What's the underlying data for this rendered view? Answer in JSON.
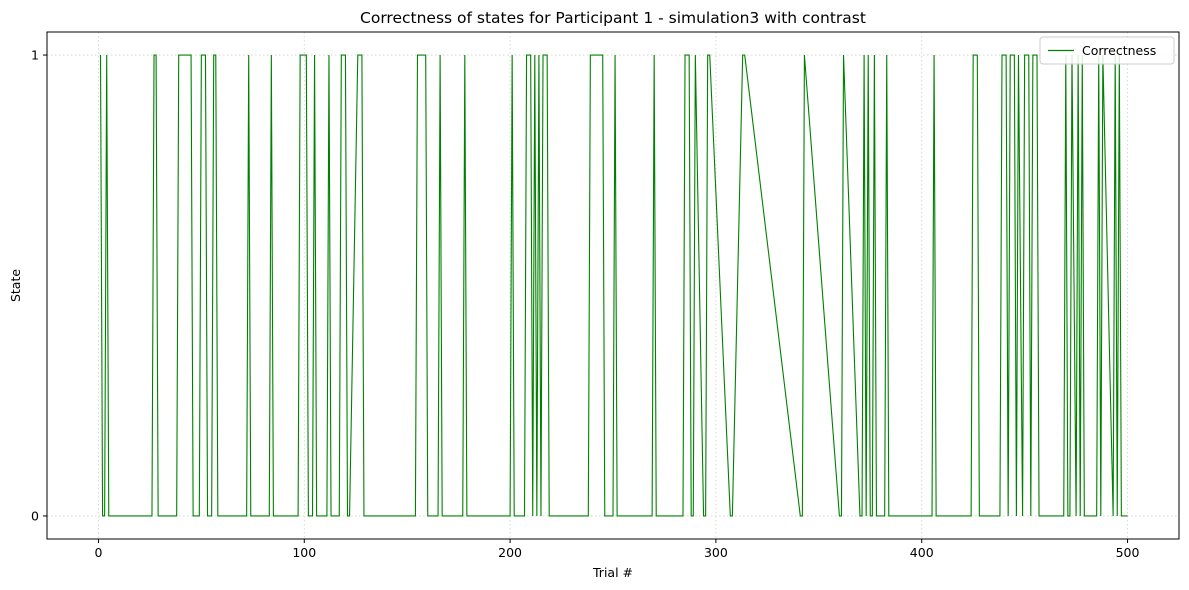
{
  "chart_data": {
    "type": "line",
    "title": "Correctness of states for Participant 1 - simulation3 with contrast",
    "xlabel": "Trial #",
    "ylabel": "State",
    "xlim": [
      -25,
      525
    ],
    "ylim": [
      -0.05,
      1.05
    ],
    "xticks": [
      0,
      100,
      200,
      300,
      400,
      500
    ],
    "xtick_labels": [
      "0",
      "100",
      "200",
      "300",
      "400",
      "500"
    ],
    "yticks": [
      0,
      1
    ],
    "ytick_labels": [
      "0",
      "1"
    ],
    "grid": true,
    "legend_position": "upper right",
    "series": [
      {
        "name": "Correctness",
        "color": "#008000",
        "x": [
          1,
          2,
          3,
          4,
          5,
          26,
          27,
          28,
          29,
          38,
          39,
          45,
          46,
          49,
          50,
          52,
          53,
          55,
          56,
          57,
          58,
          72,
          73,
          74,
          83,
          84,
          85,
          97,
          98,
          101,
          102,
          104,
          105,
          106,
          111,
          112,
          113,
          117,
          118,
          120,
          121,
          122,
          126,
          127,
          128,
          129,
          154,
          155,
          159,
          160,
          165,
          166,
          167,
          177,
          178,
          179,
          200,
          201,
          202,
          207,
          208,
          210,
          211,
          212,
          213,
          214,
          215,
          216,
          217,
          218,
          219,
          238,
          239,
          245,
          246,
          250,
          251,
          252,
          269,
          270,
          271,
          284,
          285,
          287,
          288,
          289,
          290,
          294,
          295,
          296,
          297,
          307,
          308,
          313,
          314,
          341,
          342,
          343,
          360,
          361,
          362,
          370,
          371,
          372,
          373,
          374,
          375,
          376,
          377,
          378,
          382,
          383,
          384,
          405,
          406,
          407,
          424,
          425,
          427,
          428,
          438,
          439,
          441,
          442,
          443,
          445,
          446,
          447,
          449,
          450,
          452,
          453,
          454,
          456,
          457,
          469,
          470,
          471,
          472,
          473,
          475,
          476,
          477,
          478,
          479,
          485,
          486,
          487,
          488,
          493,
          494,
          495,
          496,
          497,
          500
        ],
        "y": [
          1,
          0,
          0,
          1,
          0,
          0,
          1,
          1,
          0,
          0,
          1,
          1,
          0,
          0,
          1,
          1,
          0,
          0,
          1,
          1,
          0,
          0,
          1,
          0,
          0,
          1,
          0,
          0,
          1,
          1,
          0,
          0,
          1,
          0,
          0,
          1,
          0,
          0,
          1,
          1,
          0,
          0,
          1,
          1,
          1,
          0,
          0,
          1,
          1,
          0,
          0,
          1,
          0,
          0,
          1,
          0,
          0,
          1,
          0,
          0,
          1,
          1,
          0,
          1,
          0,
          1,
          0,
          1,
          1,
          1,
          0,
          0,
          1,
          1,
          0,
          0,
          1,
          0,
          0,
          1,
          0,
          0,
          1,
          1,
          0,
          0,
          1,
          0,
          0,
          1,
          1,
          0,
          0,
          1,
          1,
          0,
          0,
          1,
          0,
          0,
          1,
          0,
          0,
          1,
          0,
          1,
          0,
          0,
          1,
          0,
          0,
          1,
          0,
          0,
          1,
          0,
          0,
          1,
          1,
          0,
          0,
          1,
          1,
          0,
          1,
          1,
          0,
          1,
          0,
          1,
          1,
          0,
          1,
          1,
          0,
          0,
          1,
          0,
          0,
          1,
          0,
          1,
          0,
          1,
          0,
          0,
          1,
          0,
          1,
          0,
          1,
          0,
          1,
          0,
          0
        ]
      }
    ]
  }
}
